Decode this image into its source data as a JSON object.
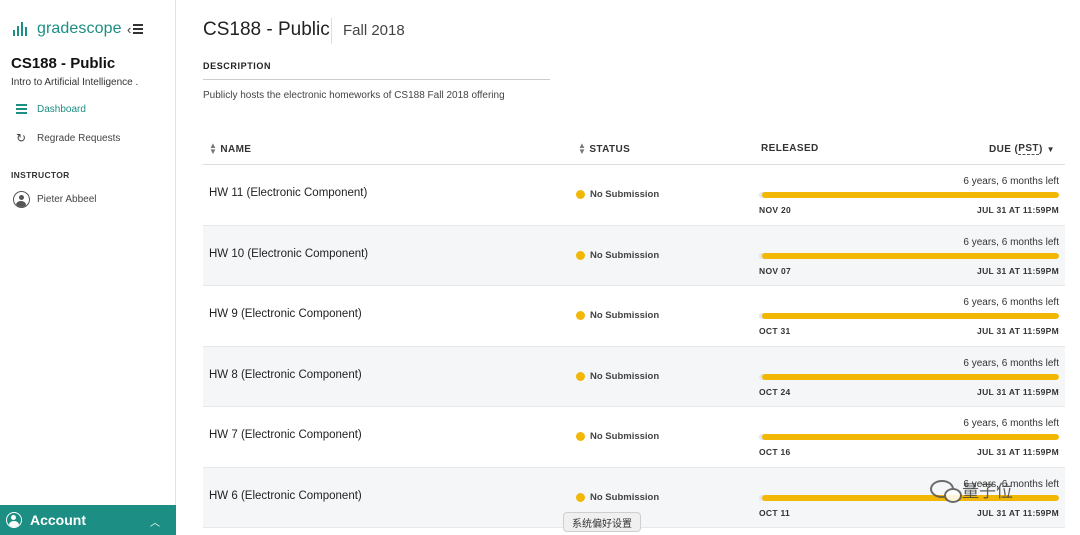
{
  "brand": {
    "name": "gradescope"
  },
  "sidebar": {
    "course_title": "CS188 - Public",
    "course_subtitle": "Intro to Artificial Intelligence .",
    "nav": [
      {
        "label": "Dashboard",
        "icon": "dashboard-icon",
        "active": true
      },
      {
        "label": "Regrade Requests",
        "icon": "refresh-icon",
        "active": false
      }
    ],
    "instructor_label": "INSTRUCTOR",
    "instructor_name": "Pieter Abbeel",
    "account_label": "Account"
  },
  "header": {
    "title": "CS188 - Public",
    "term": "Fall 2018"
  },
  "description": {
    "label": "DESCRIPTION",
    "text": "Publicly hosts the electronic homeworks of CS188 Fall 2018 offering"
  },
  "table": {
    "headers": {
      "name": "NAME",
      "status": "STATUS",
      "released": "RELEASED",
      "due_prefix": "DUE (",
      "due_tz": "PST",
      "due_suffix": ")"
    },
    "rows": [
      {
        "name": "HW 11 (Electronic Component)",
        "status": "No Submission",
        "time_left": "6 years, 6 months left",
        "released": "NOV 20",
        "due": "JUL 31 AT 11:59PM",
        "progress": 0.99
      },
      {
        "name": "HW 10 (Electronic Component)",
        "status": "No Submission",
        "time_left": "6 years, 6 months left",
        "released": "NOV 07",
        "due": "JUL 31 AT 11:59PM",
        "progress": 0.99
      },
      {
        "name": "HW 9 (Electronic Component)",
        "status": "No Submission",
        "time_left": "6 years, 6 months left",
        "released": "OCT 31",
        "due": "JUL 31 AT 11:59PM",
        "progress": 0.99
      },
      {
        "name": "HW 8 (Electronic Component)",
        "status": "No Submission",
        "time_left": "6 years, 6 months left",
        "released": "OCT 24",
        "due": "JUL 31 AT 11:59PM",
        "progress": 0.99
      },
      {
        "name": "HW 7 (Electronic Component)",
        "status": "No Submission",
        "time_left": "6 years, 6 months left",
        "released": "OCT 16",
        "due": "JUL 31 AT 11:59PM",
        "progress": 0.99
      },
      {
        "name": "HW 6 (Electronic Component)",
        "status": "No Submission",
        "time_left": "6 years, 6 months left",
        "released": "OCT 11",
        "due": "JUL 31 AT 11:59PM",
        "progress": 0.99
      }
    ]
  },
  "overlay": {
    "tooltip": "系统偏好设置",
    "watermark": "量子位"
  },
  "colors": {
    "accent": "#1c8e83",
    "status_warning": "#f2b705"
  }
}
